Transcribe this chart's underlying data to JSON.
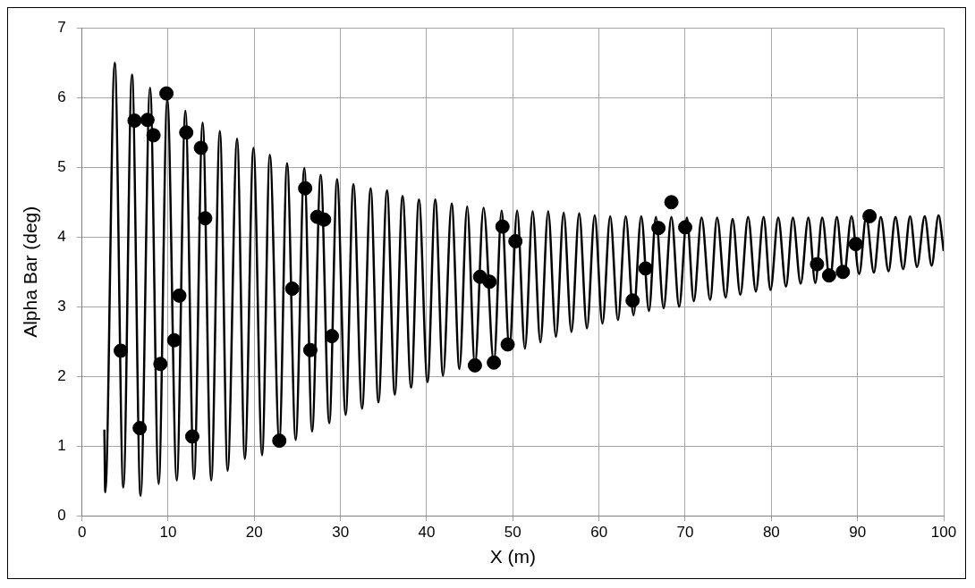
{
  "chart_data": {
    "type": "line",
    "xlabel": "X (m)",
    "ylabel": "Alpha Bar (deg)",
    "xlim": [
      0,
      100
    ],
    "xticks": [
      0,
      10,
      20,
      30,
      40,
      50,
      60,
      70,
      80,
      90,
      100
    ],
    "ylim": [
      0,
      7
    ],
    "yticks": [
      0,
      1,
      2,
      3,
      4,
      5,
      6,
      7
    ],
    "grid": true,
    "series": [
      {
        "color": "#000000",
        "marker": "none",
        "line_style": "solid",
        "x": [
          2.6,
          2.7,
          3.8,
          4.8,
          5.8,
          6.8,
          7.9,
          8.9,
          9.9,
          11.0,
          12.0,
          13.0,
          14.0,
          15.0,
          16.0,
          16.9,
          18.0,
          18.9,
          19.9,
          20.9,
          21.8,
          22.9,
          23.8,
          24.8,
          25.8,
          26.7,
          27.7,
          28.7,
          29.6,
          30.6,
          31.5,
          32.5,
          33.5,
          34.4,
          35.4,
          36.3,
          37.2,
          38.2,
          39.1,
          40.1,
          41.0,
          41.9,
          42.9,
          43.8,
          44.7,
          45.6,
          46.6,
          47.8,
          48.7,
          49.6,
          50.5,
          51.4,
          52.3,
          53.2,
          54.1,
          55.0,
          55.9,
          56.8,
          57.7,
          58.6,
          59.5,
          60.4,
          61.3,
          62.2,
          63.1,
          64.0,
          64.9,
          65.8,
          66.6,
          67.5,
          68.4,
          69.3,
          70.2,
          71.0,
          71.9,
          72.9,
          73.7,
          74.7,
          75.5,
          76.4,
          77.3,
          78.2,
          79.1,
          79.9,
          80.8,
          81.7,
          82.5,
          83.4,
          84.3,
          85.1,
          85.9,
          86.8,
          87.6,
          88.4,
          89.3,
          90.2,
          91.0,
          91.9,
          92.7,
          93.6,
          94.4,
          95.3,
          96.1,
          96.9,
          97.8,
          98.6,
          99.4,
          100
        ],
        "values": [
          1.24,
          0.34,
          6.5,
          0.41,
          6.33,
          0.29,
          6.14,
          0.46,
          5.98,
          0.51,
          5.81,
          0.53,
          5.64,
          0.51,
          5.52,
          0.65,
          5.41,
          0.82,
          5.28,
          0.87,
          5.18,
          1.07,
          5.06,
          1.09,
          4.99,
          1.21,
          4.89,
          1.33,
          4.83,
          1.45,
          4.76,
          1.54,
          4.7,
          1.63,
          4.67,
          1.74,
          4.59,
          1.84,
          4.54,
          1.92,
          4.54,
          2.01,
          4.48,
          2.11,
          4.44,
          2.16,
          4.42,
          2.2,
          4.38,
          2.4,
          4.38,
          2.4,
          4.37,
          2.49,
          4.37,
          2.57,
          4.35,
          2.64,
          4.34,
          2.69,
          4.31,
          2.76,
          4.3,
          2.81,
          4.3,
          2.88,
          4.3,
          2.94,
          4.29,
          2.98,
          4.29,
          3.0,
          4.28,
          3.08,
          4.28,
          3.1,
          4.28,
          3.13,
          4.26,
          3.17,
          4.29,
          3.22,
          4.29,
          3.24,
          4.28,
          3.29,
          4.28,
          3.33,
          4.28,
          3.34,
          4.28,
          3.37,
          4.29,
          3.42,
          4.3,
          3.47,
          4.29,
          3.49,
          4.29,
          3.51,
          4.29,
          3.54,
          4.3,
          3.57,
          4.3,
          3.59,
          4.31,
          3.8
        ]
      },
      {
        "type": "scatter",
        "color": "#000000",
        "marker": "circle",
        "x": [
          4.5,
          6.7,
          6.1,
          7.6,
          8.3,
          9.8,
          9.1,
          10.7,
          11.3,
          12.1,
          12.8,
          13.8,
          14.3,
          22.9,
          24.4,
          25.9,
          26.5,
          27.3,
          28.1,
          29.0,
          45.6,
          46.2,
          47.3,
          47.8,
          48.8,
          49.4,
          50.3,
          63.9,
          65.4,
          66.9,
          68.4,
          70.0,
          85.3,
          86.7,
          88.3,
          89.8,
          91.4
        ],
        "values": [
          2.37,
          1.26,
          5.67,
          5.68,
          5.46,
          6.06,
          2.18,
          2.52,
          3.16,
          5.5,
          1.14,
          5.28,
          4.27,
          1.08,
          3.26,
          4.7,
          2.38,
          4.29,
          4.25,
          2.58,
          2.16,
          3.43,
          3.36,
          2.2,
          4.15,
          2.46,
          3.94,
          3.09,
          3.55,
          4.13,
          4.5,
          4.14,
          3.61,
          3.45,
          3.5,
          3.9,
          4.3
        ]
      }
    ]
  }
}
